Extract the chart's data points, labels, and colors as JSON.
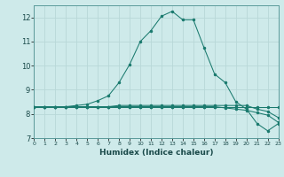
{
  "xlabel": "Humidex (Indice chaleur)",
  "bg_color": "#ceeaea",
  "line_color": "#1a7a6e",
  "grid_color": "#b8d8d8",
  "x_values": [
    0,
    1,
    2,
    3,
    4,
    5,
    6,
    7,
    8,
    9,
    10,
    11,
    12,
    13,
    14,
    15,
    16,
    17,
    18,
    19,
    20,
    21,
    22,
    23
  ],
  "series": [
    [
      8.3,
      8.3,
      8.3,
      8.3,
      8.35,
      8.4,
      8.55,
      8.75,
      9.3,
      10.05,
      11.0,
      11.45,
      12.05,
      12.25,
      11.9,
      11.9,
      10.75,
      9.65,
      9.3,
      8.5,
      8.2,
      7.6,
      7.3,
      7.6
    ],
    [
      8.3,
      8.3,
      8.3,
      8.3,
      8.3,
      8.3,
      8.3,
      8.3,
      8.35,
      8.35,
      8.35,
      8.35,
      8.35,
      8.35,
      8.35,
      8.35,
      8.35,
      8.35,
      8.35,
      8.35,
      8.35,
      8.2,
      8.1,
      7.85
    ],
    [
      8.3,
      8.3,
      8.3,
      8.3,
      8.3,
      8.3,
      8.3,
      8.3,
      8.3,
      8.3,
      8.3,
      8.3,
      8.3,
      8.3,
      8.3,
      8.3,
      8.3,
      8.3,
      8.25,
      8.2,
      8.15,
      8.05,
      7.95,
      7.65
    ],
    [
      8.3,
      8.3,
      8.3,
      8.3,
      8.3,
      8.3,
      8.3,
      8.3,
      8.3,
      8.3,
      8.3,
      8.3,
      8.3,
      8.3,
      8.3,
      8.3,
      8.3,
      8.3,
      8.3,
      8.3,
      8.3,
      8.3,
      8.3,
      8.3
    ]
  ],
  "xlim": [
    0,
    23
  ],
  "ylim": [
    7.0,
    12.5
  ],
  "yticks": [
    7,
    8,
    9,
    10,
    11,
    12
  ],
  "xticks": [
    0,
    1,
    2,
    3,
    4,
    5,
    6,
    7,
    8,
    9,
    10,
    11,
    12,
    13,
    14,
    15,
    16,
    17,
    18,
    19,
    20,
    21,
    22,
    23
  ]
}
